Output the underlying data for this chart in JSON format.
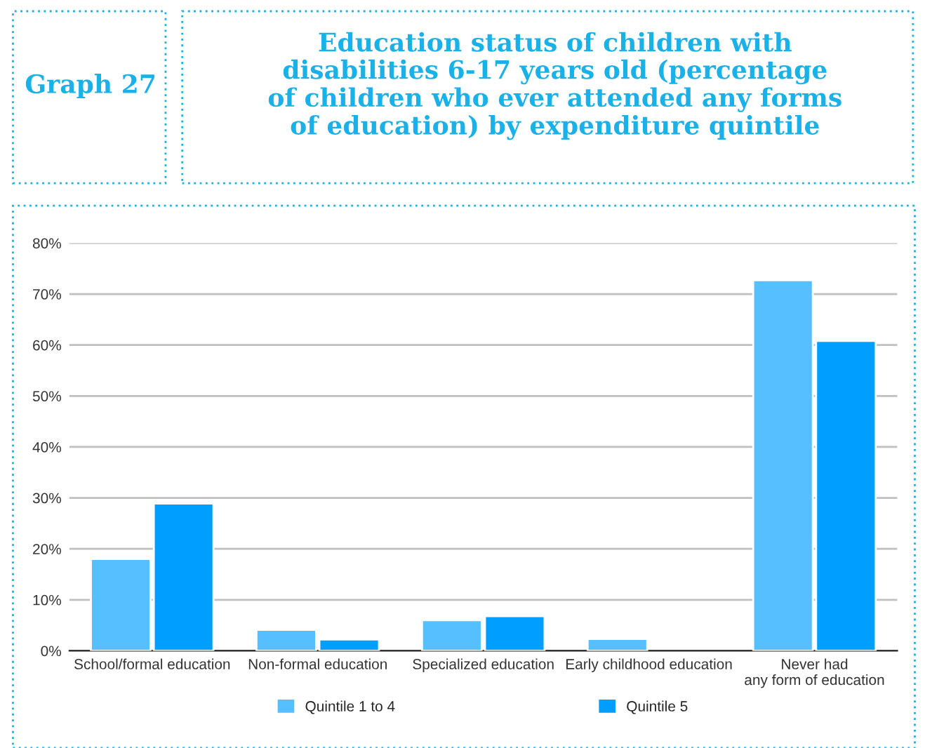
{
  "chart_data": {
    "type": "bar",
    "title": "Education status of children with\ndisabilities 6-17 years old (percentage\nof children who ever attended any forms\nof education) by expenditure quintile",
    "annotations": [
      "Graph 27"
    ],
    "categories": [
      "School/formal education",
      "Non-formal education",
      "Specialized education",
      "Early childhood education",
      "Never had\nany form of education"
    ],
    "series": [
      {
        "name": "Quintile 1 to 4",
        "color": "#55bfff",
        "values": [
          18,
          4.1,
          6.0,
          2.3,
          72.7
        ]
      },
      {
        "name": "Quintile 5",
        "color": "#009fff",
        "values": [
          28.9,
          2.2,
          6.8,
          null,
          60.8
        ]
      }
    ],
    "ylim": [
      0,
      80
    ],
    "yticks": [
      {
        "value": 0,
        "label": "0%"
      },
      {
        "value": 10,
        "label": "10%"
      },
      {
        "value": 20,
        "label": "20%"
      },
      {
        "value": 30,
        "label": "30%"
      },
      {
        "value": 40,
        "label": "40%"
      },
      {
        "value": 50,
        "label": "50%"
      },
      {
        "value": 60,
        "label": "60%"
      },
      {
        "value": 70,
        "label": "70%"
      },
      {
        "value": 80,
        "label": "80%"
      }
    ],
    "grid": "y",
    "legend": "bottom"
  }
}
